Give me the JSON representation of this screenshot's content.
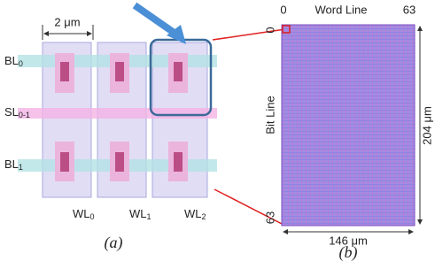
{
  "panel_a": {
    "scale_bar": "2 μm",
    "bit_lines": [
      {
        "base": "BL",
        "sub": "0"
      },
      {
        "base": "BL",
        "sub": "1"
      }
    ],
    "source_line": {
      "base": "SL",
      "sub": "0-1"
    },
    "word_lines": [
      {
        "base": "WL",
        "sub": "0"
      },
      {
        "base": "WL",
        "sub": "1"
      },
      {
        "base": "WL",
        "sub": "2"
      }
    ],
    "caption": "(a)"
  },
  "panel_b": {
    "x_axis_label": "Word Line",
    "x_start": "0",
    "x_end": "63",
    "y_axis_label": "Bit Line",
    "y_start": "0",
    "y_end": "63",
    "height": "204 μm",
    "width": "146 μm",
    "caption": "(b)"
  }
}
